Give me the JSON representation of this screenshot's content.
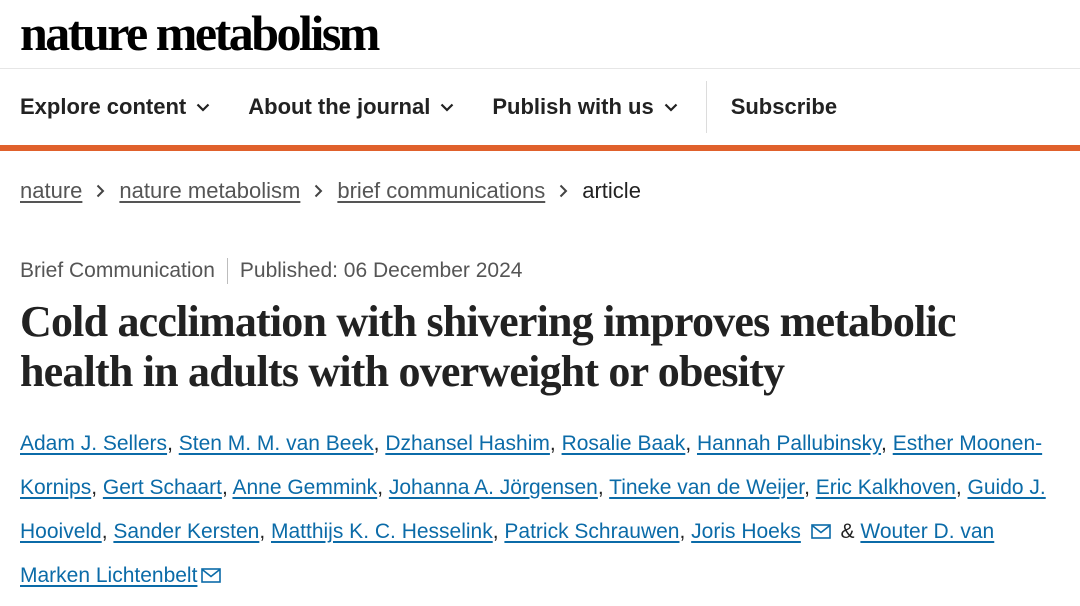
{
  "site": {
    "logo": "nature metabolism"
  },
  "nav": {
    "items": [
      {
        "label": "Explore content"
      },
      {
        "label": "About the journal"
      },
      {
        "label": "Publish with us"
      }
    ],
    "subscribe": "Subscribe"
  },
  "breadcrumb": {
    "items": [
      "nature",
      "nature metabolism",
      "brief communications"
    ],
    "current": "article"
  },
  "article": {
    "type": "Brief Communication",
    "published": "Published: 06 December 2024",
    "title": "Cold acclimation with shivering improves metabolic health in adults with overweight or obesity",
    "authors": [
      "Adam J. Sellers",
      "Sten M. M. van Beek",
      "Dzhansel Hashim",
      "Rosalie Baak",
      "Hannah Pallubinsky",
      "Esther Moonen-Kornips",
      "Gert Schaart",
      "Anne Gemmink",
      "Johanna A. Jörgensen",
      "Tineke van de Weijer",
      "Eric Kalkhoven",
      "Guido J. Hooiveld",
      "Sander Kersten",
      "Matthijs K. C. Hesselink",
      "Patrick Schrauwen",
      "Joris Hoeks",
      "Wouter D. van Marken Lichtenbelt"
    ],
    "author_separator": ", ",
    "and_text": "&"
  },
  "colors": {
    "accent": "#e0612c",
    "link": "#0b6ba8"
  },
  "icons": {
    "nav_chevron": "chevron-down-icon",
    "breadcrumb_sep": "chevron-right-icon",
    "mail": "mail-icon"
  }
}
